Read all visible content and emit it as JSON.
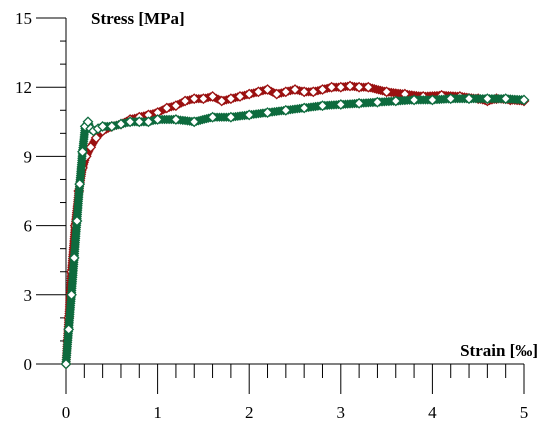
{
  "chart_data": {
    "type": "scatter",
    "xlabel": "Strain [‰]",
    "ylabel": "Stress [MPa]",
    "xlim": [
      0,
      5
    ],
    "ylim": [
      0,
      15
    ],
    "x_ticks": [
      0,
      1,
      2,
      3,
      4,
      5
    ],
    "y_ticks": [
      0,
      3,
      6,
      9,
      12,
      15
    ],
    "x_minor_step": 0.2,
    "grid": false,
    "legend": "none",
    "series": [
      {
        "color": "#9b1111",
        "marker": "diamond",
        "x": [
          0.0,
          0.03,
          0.06,
          0.1,
          0.14,
          0.18,
          0.22,
          0.27,
          0.33,
          0.4,
          0.5,
          0.6,
          0.7,
          0.8,
          0.9,
          1.0,
          1.1,
          1.2,
          1.3,
          1.4,
          1.5,
          1.6,
          1.7,
          1.8,
          1.9,
          2.0,
          2.1,
          2.2,
          2.3,
          2.4,
          2.5,
          2.6,
          2.7,
          2.8,
          2.9,
          3.0,
          3.1,
          3.2,
          3.3,
          3.5,
          3.7,
          3.9,
          4.1,
          4.3,
          4.5,
          4.6,
          4.7,
          4.85,
          5.0
        ],
        "y": [
          0.0,
          2.0,
          4.0,
          6.0,
          7.5,
          8.5,
          9.0,
          9.4,
          9.8,
          10.1,
          10.3,
          10.4,
          10.6,
          10.7,
          10.8,
          10.9,
          11.1,
          11.2,
          11.4,
          11.5,
          11.5,
          11.6,
          11.4,
          11.5,
          11.6,
          11.7,
          11.8,
          11.9,
          11.7,
          11.8,
          11.9,
          11.8,
          11.8,
          11.9,
          12.0,
          12.0,
          12.05,
          12.0,
          12.0,
          11.8,
          11.7,
          11.6,
          11.65,
          11.6,
          11.5,
          11.4,
          11.5,
          11.45,
          11.4
        ]
      },
      {
        "color": "#0e6b3e",
        "marker": "diamond",
        "x": [
          0.0,
          0.03,
          0.06,
          0.09,
          0.12,
          0.15,
          0.18,
          0.21,
          0.24,
          0.27,
          0.3,
          0.35,
          0.4,
          0.5,
          0.6,
          0.7,
          0.8,
          0.9,
          1.0,
          1.2,
          1.4,
          1.6,
          1.8,
          2.0,
          2.2,
          2.4,
          2.6,
          2.8,
          3.0,
          3.2,
          3.4,
          3.6,
          3.8,
          4.0,
          4.2,
          4.4,
          4.6,
          4.8,
          5.0
        ],
        "y": [
          0.0,
          1.5,
          3.0,
          4.6,
          6.2,
          7.8,
          9.2,
          10.3,
          10.5,
          10.2,
          10.1,
          10.2,
          10.3,
          10.3,
          10.4,
          10.5,
          10.5,
          10.5,
          10.6,
          10.6,
          10.5,
          10.7,
          10.7,
          10.8,
          10.9,
          11.0,
          11.1,
          11.2,
          11.25,
          11.3,
          11.35,
          11.4,
          11.45,
          11.45,
          11.5,
          11.5,
          11.5,
          11.5,
          11.45
        ]
      }
    ]
  }
}
